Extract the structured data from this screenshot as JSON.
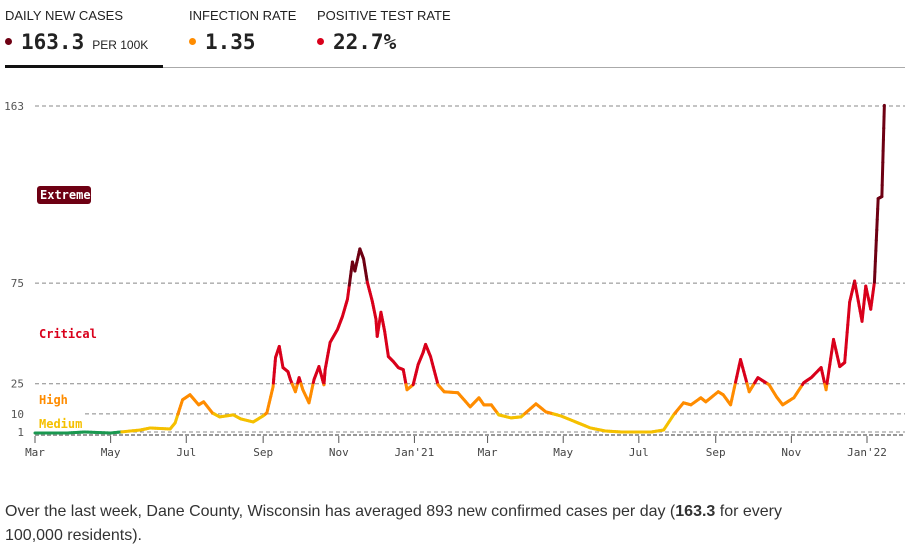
{
  "tabs": [
    {
      "label": "DAILY NEW CASES",
      "value": "163.3",
      "unit": "PER 100K",
      "dot_color": "#6e0013",
      "active": true
    },
    {
      "label": "INFECTION RATE",
      "value": "1.35",
      "dot_color": "#ff8c00"
    },
    {
      "label": "POSITIVE TEST RATE",
      "value": "22.7%",
      "dot_color": "#d9001b"
    }
  ],
  "chart_data": {
    "type": "line",
    "title": "",
    "xlabel": "",
    "ylabel": "",
    "ylim": [
      0,
      163
    ],
    "xlim": [
      "2020-03-01",
      "2022-01-15"
    ],
    "y_ticks": [
      1,
      10,
      25,
      75,
      163
    ],
    "x_ticks": [
      {
        "date": "2020-03-01",
        "label": "Mar"
      },
      {
        "date": "2020-05-01",
        "label": "May"
      },
      {
        "date": "2020-07-01",
        "label": "Jul"
      },
      {
        "date": "2020-09-01",
        "label": "Sep"
      },
      {
        "date": "2020-11-01",
        "label": "Nov"
      },
      {
        "date": "2021-01-01",
        "label": "Jan'21"
      },
      {
        "date": "2021-03-01",
        "label": "Mar"
      },
      {
        "date": "2021-05-01",
        "label": "May"
      },
      {
        "date": "2021-07-01",
        "label": "Jul"
      },
      {
        "date": "2021-09-01",
        "label": "Sep"
      },
      {
        "date": "2021-11-01",
        "label": "Nov"
      },
      {
        "date": "2022-01-01",
        "label": "Jan'22"
      }
    ],
    "grid": "horizontal dashed at thresholds",
    "tiers": [
      {
        "label": "Extreme",
        "min": 75,
        "color": "#6e0013"
      },
      {
        "label": "Critical",
        "min": 25,
        "color": "#d9001b"
      },
      {
        "label": "High",
        "min": 10,
        "color": "#ff8c00"
      },
      {
        "label": "Medium",
        "min": 1,
        "color": "#f5c000"
      },
      {
        "label": "",
        "min": 0,
        "color": "#1a9850"
      }
    ],
    "series": [
      {
        "x": [
          "2020-03-01",
          "2020-03-27",
          "2020-04-10",
          "2020-05-01",
          "2020-05-25",
          "2020-06-02",
          "2020-06-18",
          "2020-06-22",
          "2020-06-28",
          "2020-07-04",
          "2020-07-11",
          "2020-07-15",
          "2020-07-22",
          "2020-07-28",
          "2020-08-08",
          "2020-08-14",
          "2020-08-24",
          "2020-09-01",
          "2020-09-04",
          "2020-09-09",
          "2020-09-11",
          "2020-09-14",
          "2020-09-17",
          "2020-09-21",
          "2020-09-23",
          "2020-09-27",
          "2020-09-30",
          "2020-10-03",
          "2020-10-08",
          "2020-10-12",
          "2020-10-16",
          "2020-10-20",
          "2020-10-21",
          "2020-10-25",
          "2020-10-31",
          "2020-11-04",
          "2020-11-08",
          "2020-11-12",
          "2020-11-14",
          "2020-11-18",
          "2020-11-21",
          "2020-11-24",
          "2020-11-28",
          "2020-12-01",
          "2020-12-02",
          "2020-12-05",
          "2020-12-08",
          "2020-12-11",
          "2020-12-15",
          "2020-12-19",
          "2020-12-23",
          "2020-12-26",
          "2020-12-31",
          "2021-01-04",
          "2021-01-08",
          "2021-01-10",
          "2021-01-14",
          "2021-01-20",
          "2021-01-25",
          "2021-02-05",
          "2021-02-15",
          "2021-02-22",
          "2021-02-26",
          "2021-03-04",
          "2021-03-10",
          "2021-03-20",
          "2021-03-28",
          "2021-04-09",
          "2021-04-17",
          "2021-04-29",
          "2021-05-11",
          "2021-05-23",
          "2021-06-04",
          "2021-06-17",
          "2021-07-03",
          "2021-07-11",
          "2021-07-21",
          "2021-07-29",
          "2021-08-06",
          "2021-08-12",
          "2021-08-20",
          "2021-08-24",
          "2021-09-03",
          "2021-09-07",
          "2021-09-13",
          "2021-09-21",
          "2021-09-28",
          "2021-10-05",
          "2021-10-14",
          "2021-10-20",
          "2021-10-25",
          "2021-11-03",
          "2021-11-11",
          "2021-11-17",
          "2021-11-25",
          "2021-11-29",
          "2021-12-05",
          "2021-12-10",
          "2021-12-14",
          "2021-12-18",
          "2021-12-22",
          "2021-12-28",
          "2021-12-31",
          "2022-01-04",
          "2022-01-07",
          "2022-01-10",
          "2022-01-13",
          "2022-01-15"
        ],
        "y": [
          0.5,
          0.5,
          1,
          0.5,
          2,
          3,
          2.5,
          5.5,
          17,
          19.5,
          14.5,
          16,
          10.5,
          8.5,
          9.5,
          7.5,
          6,
          9,
          10.5,
          23.5,
          38,
          43.5,
          33,
          31,
          27,
          21,
          28,
          22,
          15.5,
          27,
          33.5,
          24.5,
          32,
          45.5,
          52,
          58.5,
          67,
          85.5,
          81,
          92,
          87,
          75.5,
          66,
          57,
          48.5,
          60.5,
          51,
          38.5,
          36,
          33,
          32,
          22,
          24.5,
          34.5,
          40.5,
          44.5,
          38.5,
          24.5,
          21,
          20.5,
          13.5,
          18,
          14.5,
          14.5,
          9.5,
          8,
          8.5,
          15,
          11,
          9,
          6,
          3,
          1.5,
          1,
          1,
          1,
          2,
          9.5,
          15.5,
          14.5,
          18,
          16,
          21,
          19.5,
          14.5,
          37,
          21,
          28,
          24.5,
          18.5,
          14.5,
          18,
          25.5,
          28,
          33,
          22,
          47,
          33.5,
          35.5,
          65.5,
          76,
          56,
          73.5,
          62,
          75.5,
          117,
          118,
          163.3
        ]
      }
    ]
  },
  "footnote": {
    "before": "Over the last week, Dane County, Wisconsin has averaged 893 new confirmed cases per day (",
    "bold": "163.3",
    "after": " for every 100,000 residents)."
  }
}
